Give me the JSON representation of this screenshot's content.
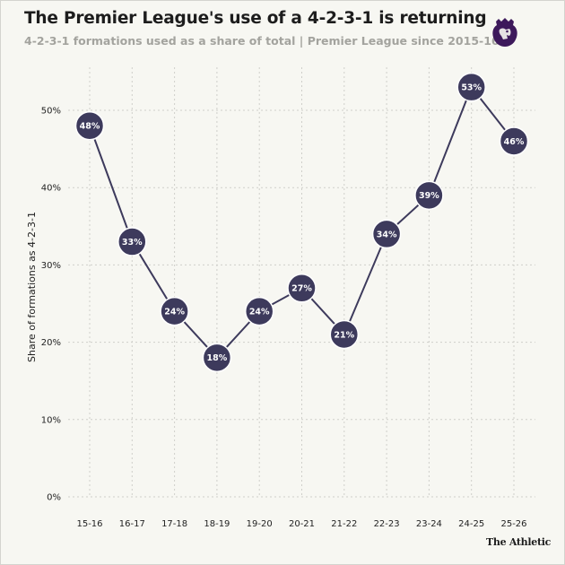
{
  "header": {
    "title": "The Premier League's use of a 4-2-3-1 is returning",
    "subtitle": "4-2-3-1 formations used as a share of total | Premier League since 2015-16"
  },
  "footer": {
    "source": "The Athletic"
  },
  "colors": {
    "marker": "#3d3a5c",
    "line": "#3d3a5c",
    "grid": "#cfcfca",
    "logo": "#3d195b"
  },
  "chart_data": {
    "type": "line",
    "title": "The Premier League's use of a 4-2-3-1 is returning",
    "subtitle": "4-2-3-1 formations used as a share of total | Premier League since 2015-16",
    "xlabel": "",
    "ylabel": "Share of formations as 4-2-3-1",
    "categories": [
      "15-16",
      "16-17",
      "17-18",
      "18-19",
      "19-20",
      "20-21",
      "21-22",
      "22-23",
      "23-24",
      "24-25",
      "25-26"
    ],
    "values": [
      48,
      33,
      24,
      18,
      24,
      27,
      21,
      34,
      39,
      53,
      46
    ],
    "data_labels": [
      "48%",
      "33%",
      "24%",
      "18%",
      "24%",
      "27%",
      "21%",
      "34%",
      "39%",
      "53%",
      "46%"
    ],
    "yticks": [
      0,
      10,
      20,
      30,
      40,
      50
    ],
    "ytick_labels": [
      "0%",
      "10%",
      "20%",
      "30%",
      "40%",
      "50%"
    ],
    "ylim": [
      0,
      55
    ],
    "grid": true
  }
}
